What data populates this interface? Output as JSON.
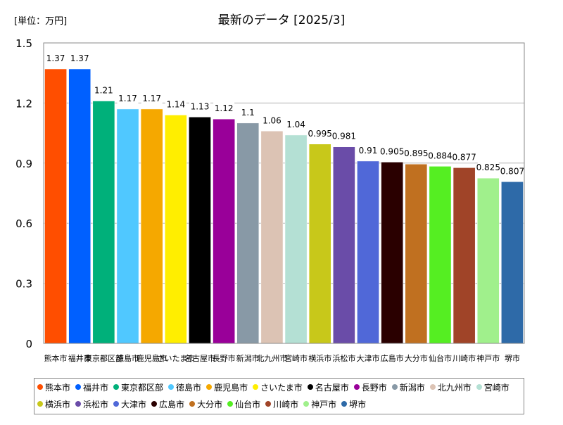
{
  "chart_data": {
    "type": "bar",
    "title": "最新のデータ [2025/3]",
    "unit_label": "[単位：万円]",
    "ylim": [
      0,
      1.5
    ],
    "yticks": [
      "0",
      "0.3",
      "0.6",
      "0.9",
      "1.2",
      "1.5"
    ],
    "ytick_values": [
      0,
      0.3,
      0.6,
      0.9,
      1.2,
      1.5
    ],
    "grid": true,
    "legend_position": "bottom",
    "categories": [
      "熊本市",
      "福井市",
      "東京都区部",
      "徳島市",
      "鹿児島市",
      "さいたま市",
      "名古屋市",
      "長野市",
      "新潟市",
      "北九州市",
      "宮崎市",
      "横浜市",
      "浜松市",
      "大津市",
      "広島市",
      "大分市",
      "仙台市",
      "川崎市",
      "神戸市",
      "堺市"
    ],
    "values": [
      1.37,
      1.37,
      1.21,
      1.17,
      1.17,
      1.14,
      1.13,
      1.12,
      1.1,
      1.06,
      1.04,
      0.995,
      0.981,
      0.91,
      0.905,
      0.895,
      0.884,
      0.877,
      0.825,
      0.807
    ],
    "value_labels": [
      "1.37",
      "1.37",
      "1.21",
      "1.17",
      "1.17",
      "1.14",
      "1.13",
      "1.12",
      "1.1",
      "1.06",
      "1.04",
      "0.995",
      "0.981",
      "0.91",
      "0.905",
      "0.895",
      "0.884",
      "0.877",
      "0.825",
      "0.807"
    ],
    "colors": [
      "#ff4e00",
      "#0060ff",
      "#00b07a",
      "#50c8ff",
      "#f5a800",
      "#ffee00",
      "#000000",
      "#990099",
      "#8899a6",
      "#dcc3b4",
      "#b4e0d4",
      "#c8c81a",
      "#6a4ca8",
      "#5068d8",
      "#2a0000",
      "#c07020",
      "#55ee22",
      "#a04428",
      "#a0f08c",
      "#2e6aa8"
    ]
  }
}
